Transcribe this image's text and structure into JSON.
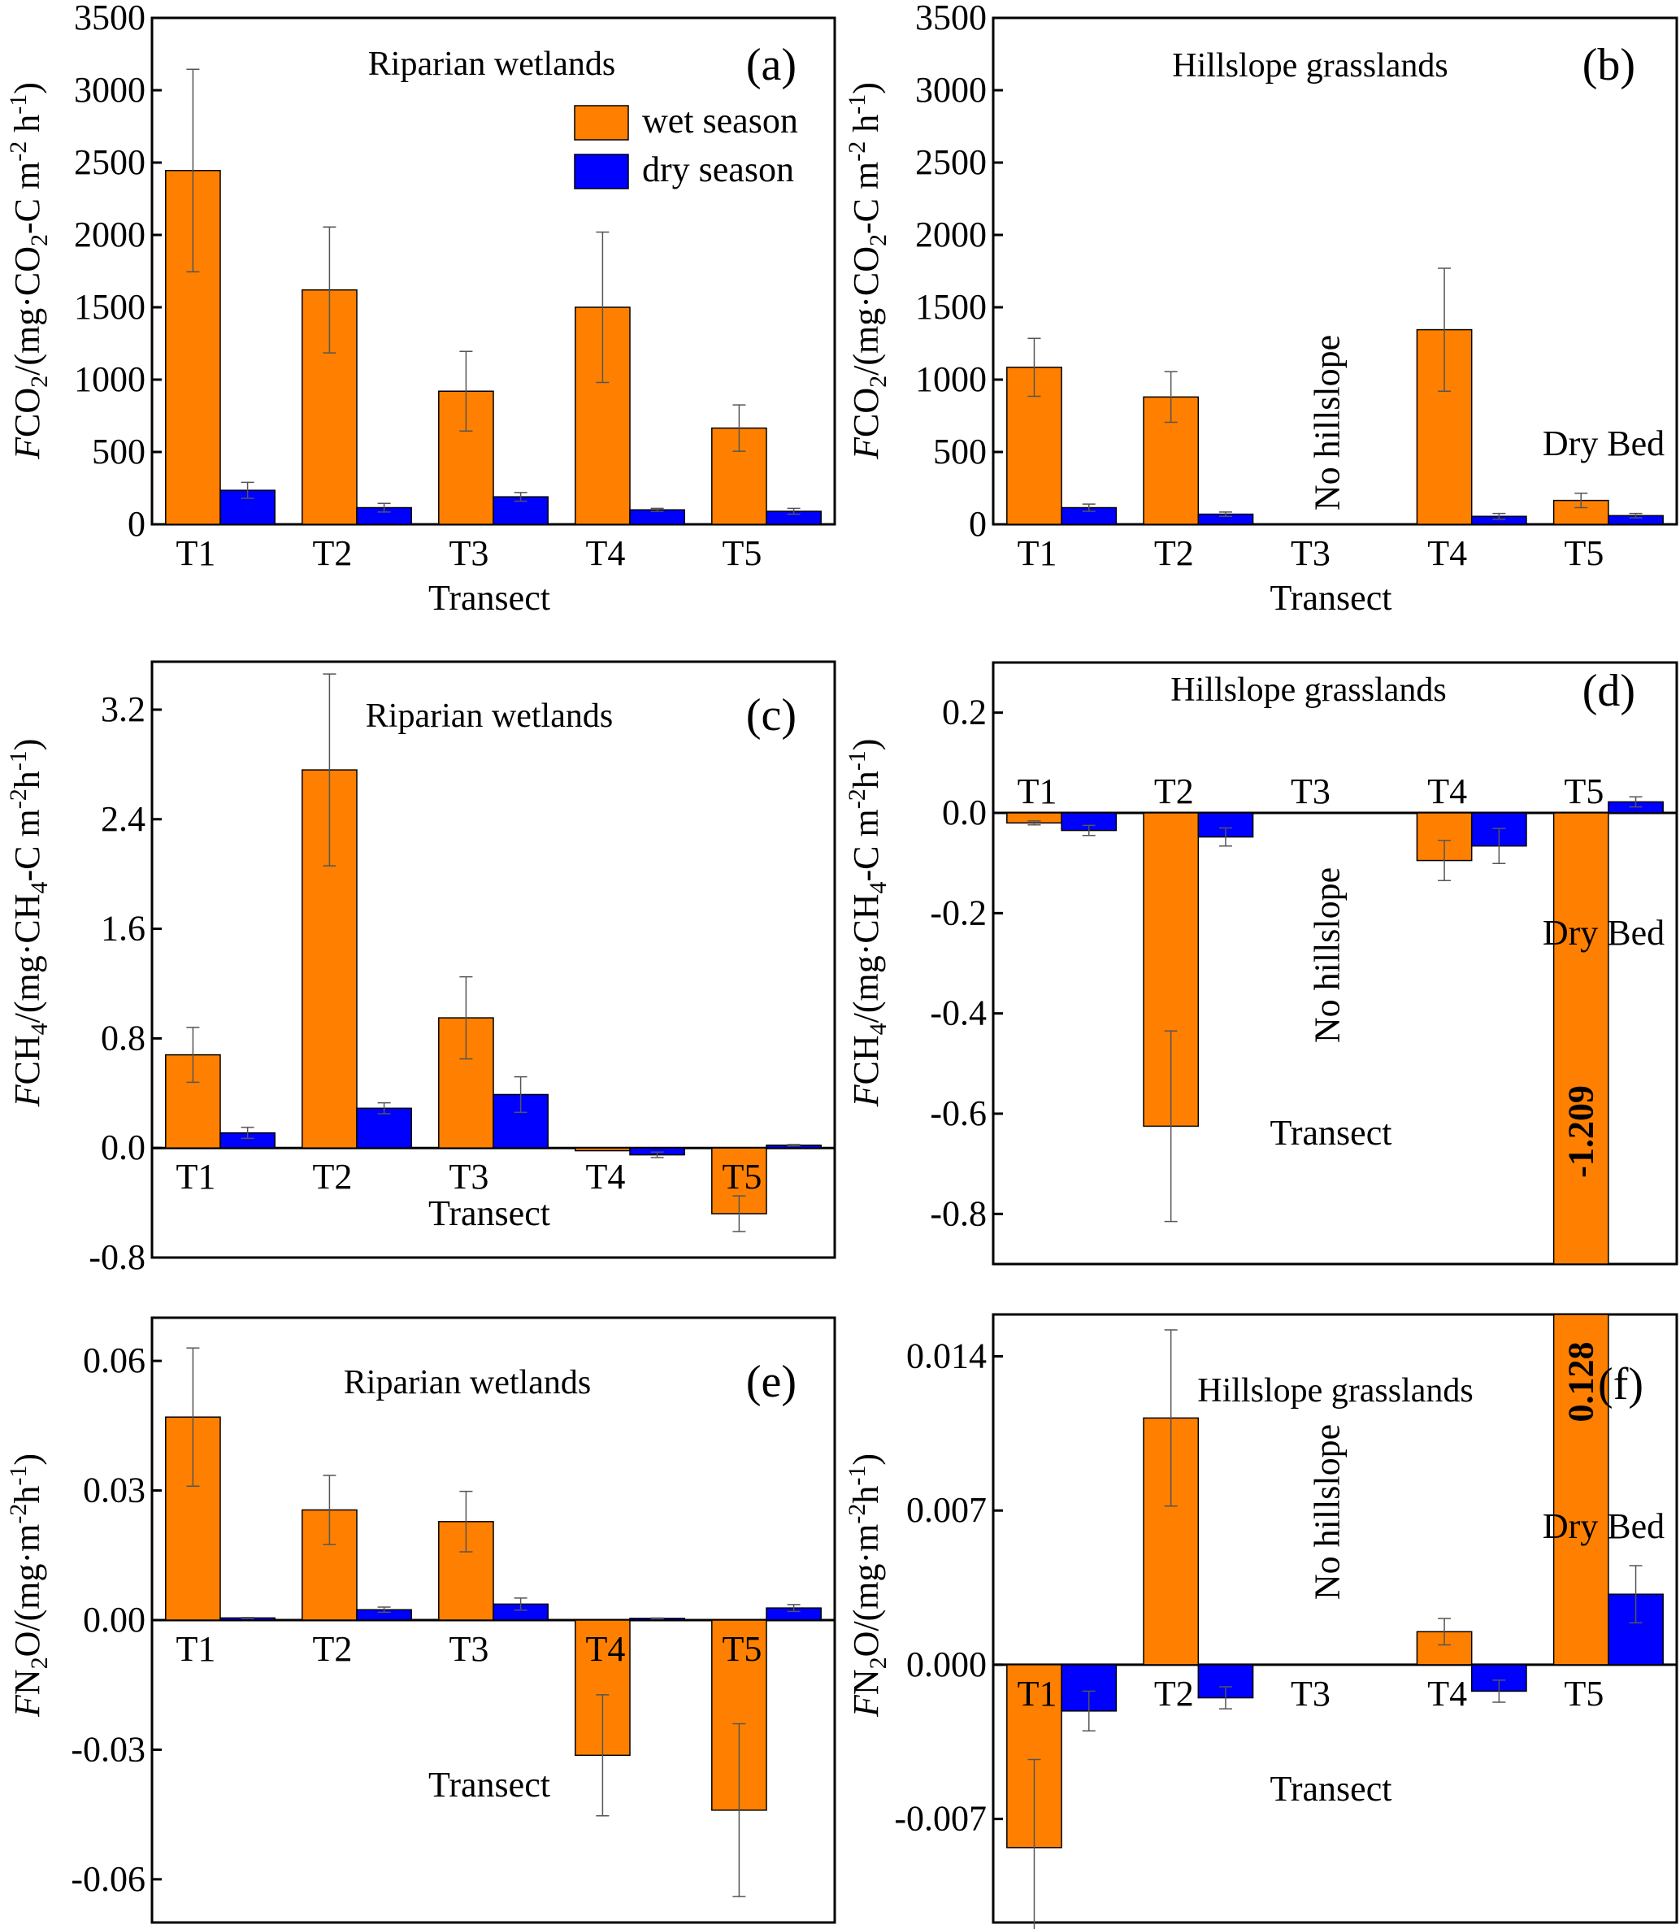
{
  "chart_data": [
    {
      "panel": "a",
      "type": "bar",
      "panel_label": "(a)",
      "annotation": "Riparian wetlands",
      "xlabel": "Transect",
      "ylabel": "FCO2/(mg·CO2-C m-2 h-1)",
      "ylabel_parts": {
        "italic": "F",
        "main": "CO",
        "sub": "2",
        "rest": "/(mg·CO",
        "sub2": "2",
        "rest2": "-C m",
        "sup1": "-2",
        "rest3": " h",
        "sup2": "-1",
        "close": ")"
      },
      "categories": [
        "T1",
        "T2",
        "T3",
        "T4",
        "T5"
      ],
      "ylim": [
        0,
        3500
      ],
      "yticks": [
        0,
        500,
        1000,
        1500,
        2000,
        2500,
        3000,
        3500
      ],
      "ytick_labels": [
        "0",
        "500",
        "1000",
        "1500",
        "2000",
        "2500",
        "3000",
        "3500"
      ],
      "xtick_position": "below",
      "legend": {
        "placement": "top-right",
        "entries": [
          "wet season",
          "dry season"
        ]
      },
      "series": [
        {
          "name": "wet season",
          "color": "#ff8000",
          "values": [
            2445,
            1620,
            920,
            1500,
            665
          ],
          "errors": [
            700,
            435,
            275,
            520,
            160
          ]
        },
        {
          "name": "dry season",
          "color": "#0000ff",
          "values": [
            235,
            115,
            190,
            100,
            90
          ],
          "errors": [
            55,
            30,
            30,
            10,
            20
          ]
        }
      ],
      "notes": []
    },
    {
      "panel": "b",
      "type": "bar",
      "panel_label": "(b)",
      "annotation": "Hillslope grasslands",
      "xlabel": "Transect",
      "ylabel": "FCO2/(mg·CO2-C m-2 h-1)",
      "categories": [
        "T1",
        "T2",
        "T3",
        "T4",
        "T5"
      ],
      "ylim": [
        0,
        3500
      ],
      "yticks": [
        0,
        500,
        1000,
        1500,
        2000,
        2500,
        3000,
        3500
      ],
      "ytick_labels": [
        "0",
        "500",
        "1000",
        "1500",
        "2000",
        "2500",
        "3000",
        "3500"
      ],
      "xtick_position": "below",
      "series": [
        {
          "name": "wet season",
          "color": "#ff8000",
          "values": [
            1085,
            880,
            null,
            1345,
            165
          ],
          "errors": [
            200,
            175,
            null,
            425,
            50
          ]
        },
        {
          "name": "dry season",
          "color": "#0000ff",
          "values": [
            115,
            70,
            null,
            55,
            60
          ],
          "errors": [
            25,
            15,
            null,
            20,
            15
          ]
        }
      ],
      "notes": [
        {
          "text": "No hillslope",
          "category": "T3",
          "orientation": "vertical"
        },
        {
          "text": "Dry Bed",
          "category": "T5",
          "orientation": "horizontal"
        }
      ]
    },
    {
      "panel": "c",
      "type": "bar",
      "panel_label": "(c)",
      "annotation": "Riparian wetlands",
      "xlabel": "Transect",
      "ylabel": "FCH4/(mg·CH4-C m-2h-1)",
      "categories": [
        "T1",
        "T2",
        "T3",
        "T4",
        "T5"
      ],
      "ylim": [
        -0.8,
        3.55
      ],
      "yticks": [
        -0.8,
        0.0,
        0.8,
        1.6,
        2.4,
        3.2
      ],
      "ytick_labels": [
        "-0.8",
        "0.0",
        "0.8",
        "1.6",
        "2.4",
        "3.2"
      ],
      "xtick_position": "inside-below-zero",
      "series": [
        {
          "name": "wet season",
          "color": "#ff8000",
          "values": [
            0.68,
            2.76,
            0.95,
            -0.02,
            -0.48
          ],
          "errors": [
            0.2,
            0.7,
            0.3,
            0.0,
            0.13
          ]
        },
        {
          "name": "dry season",
          "color": "#0000ff",
          "values": [
            0.11,
            0.29,
            0.39,
            -0.05,
            0.02
          ],
          "errors": [
            0.04,
            0.04,
            0.13,
            0.02,
            0.005
          ]
        }
      ],
      "notes": []
    },
    {
      "panel": "d",
      "type": "bar",
      "panel_label": "(d)",
      "annotation": "Hillslope grasslands",
      "xlabel": "Transect",
      "ylabel": "FCH4/(mg·CH4-C m-2h-1)",
      "categories": [
        "T1",
        "T2",
        "T3",
        "T4",
        "T5"
      ],
      "ylim": [
        -0.9,
        0.3
      ],
      "yticks": [
        -0.8,
        -0.6,
        -0.4,
        -0.2,
        0.0,
        0.2
      ],
      "ytick_labels": [
        "-0.8",
        "-0.6",
        "-0.4",
        "-0.2",
        "0.0",
        "0.2"
      ],
      "xtick_position": "above-zero",
      "series": [
        {
          "name": "wet season",
          "color": "#ff8000",
          "values": [
            -0.02,
            -0.625,
            null,
            -0.095,
            -1.209
          ],
          "errors": [
            0.004,
            0.19,
            null,
            0.04,
            null
          ]
        },
        {
          "name": "dry season",
          "color": "#0000ff",
          "values": [
            -0.035,
            -0.048,
            null,
            -0.066,
            0.022
          ],
          "errors": [
            0.01,
            0.018,
            null,
            0.035,
            0.01
          ]
        }
      ],
      "notes": [
        {
          "text": "No hillslope",
          "category": "T3",
          "orientation": "vertical"
        },
        {
          "text": "Dry Bed",
          "category": "T5",
          "orientation": "horizontal"
        },
        {
          "text": "-1.209",
          "category": "T5",
          "orientation": "vertical-bold",
          "meaning": "off-scale wet season value"
        }
      ]
    },
    {
      "panel": "e",
      "type": "bar",
      "panel_label": "(e)",
      "annotation": "Riparian wetlands",
      "xlabel": "Transect",
      "ylabel": "FN2O/(mg·m-2h-1)",
      "categories": [
        "T1",
        "T2",
        "T3",
        "T4",
        "T5"
      ],
      "ylim": [
        -0.07,
        0.07
      ],
      "yticks": [
        -0.06,
        -0.03,
        0.0,
        0.03,
        0.06
      ],
      "ytick_labels": [
        "-0.06",
        "-0.03",
        "0.00",
        "0.03",
        "0.06"
      ],
      "xtick_position": "inside-below-zero",
      "series": [
        {
          "name": "wet season",
          "color": "#ff8000",
          "values": [
            0.047,
            0.0255,
            0.0228,
            -0.0313,
            -0.044
          ],
          "errors": [
            0.016,
            0.008,
            0.007,
            0.014,
            0.02
          ]
        },
        {
          "name": "dry season",
          "color": "#0000ff",
          "values": [
            0.0005,
            0.0024,
            0.0037,
            0.0004,
            0.0028
          ],
          "errors": [
            0.0001,
            0.0006,
            0.0014,
            0.0001,
            0.0008
          ]
        }
      ],
      "notes": []
    },
    {
      "panel": "f",
      "type": "bar",
      "panel_label": "(f)",
      "annotation": "Hillslope grasslands",
      "xlabel": "Transect",
      "ylabel": "FN2O/(mg·m-2h-1)",
      "categories": [
        "T1",
        "T2",
        "T3",
        "T4",
        "T5"
      ],
      "ylim": [
        -0.0117,
        0.0159
      ],
      "yticks": [
        -0.007,
        0.0,
        0.007,
        0.014
      ],
      "ytick_labels": [
        "-0.007",
        "0.000",
        "0.007",
        "0.014"
      ],
      "xtick_position": "inside-below-zero",
      "series": [
        {
          "name": "wet season",
          "color": "#ff8000",
          "values": [
            -0.0083,
            0.0112,
            null,
            0.0015,
            0.128
          ],
          "errors": [
            0.004,
            0.004,
            null,
            0.0006,
            null
          ]
        },
        {
          "name": "dry season",
          "color": "#0000ff",
          "values": [
            -0.0021,
            -0.0015,
            null,
            -0.0012,
            0.0032
          ],
          "errors": [
            0.0009,
            0.0005,
            null,
            0.0005,
            0.0013
          ]
        }
      ],
      "notes": [
        {
          "text": "No hillslope",
          "category": "T3",
          "orientation": "vertical"
        },
        {
          "text": "Dry Bed",
          "category": "T5",
          "orientation": "horizontal"
        },
        {
          "text": "0.128",
          "category": "T5",
          "orientation": "vertical-bold",
          "meaning": "off-scale wet season value"
        }
      ]
    }
  ]
}
